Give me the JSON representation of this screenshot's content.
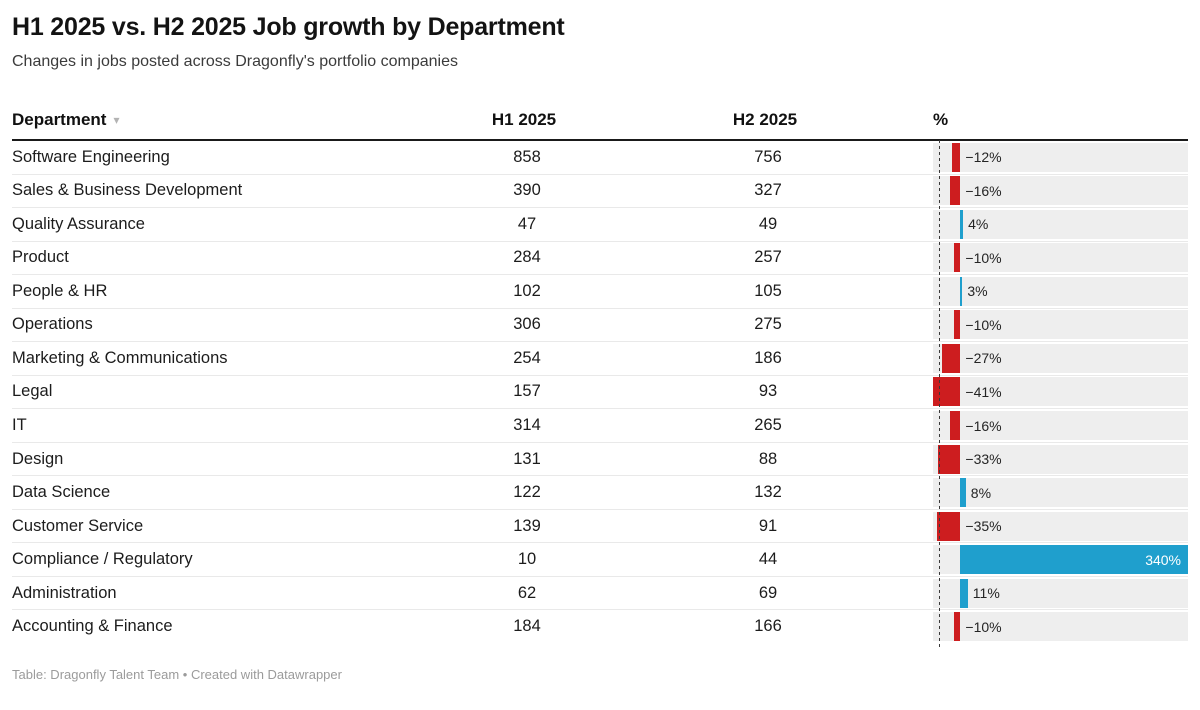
{
  "header": {
    "title": "H1 2025 vs. H2 2025 Job growth by Department",
    "subtitle": "Changes in jobs posted across Dragonfly's portfolio companies"
  },
  "table": {
    "columns": [
      {
        "key": "department",
        "label": "Department",
        "sort_icon": "▾"
      },
      {
        "key": "h1",
        "label": "H1 2025"
      },
      {
        "key": "h2",
        "label": "H2 2025"
      },
      {
        "key": "pct",
        "label": "%"
      }
    ]
  },
  "chart_data": {
    "type": "table",
    "title": "H1 2025 vs. H2 2025 Job growth by Department",
    "columns": [
      "Department",
      "H1 2025",
      "H2 2025",
      "%"
    ],
    "bar_axis": {
      "min": -41,
      "max": 340
    },
    "rows": [
      {
        "department": "Software Engineering",
        "h1": 858,
        "h2": 756,
        "pct": -12,
        "pct_label": "−12%"
      },
      {
        "department": "Sales & Business Development",
        "h1": 390,
        "h2": 327,
        "pct": -16,
        "pct_label": "−16%"
      },
      {
        "department": "Quality Assurance",
        "h1": 47,
        "h2": 49,
        "pct": 4,
        "pct_label": "4%"
      },
      {
        "department": "Product",
        "h1": 284,
        "h2": 257,
        "pct": -10,
        "pct_label": "−10%"
      },
      {
        "department": "People & HR",
        "h1": 102,
        "h2": 105,
        "pct": 3,
        "pct_label": "3%"
      },
      {
        "department": "Operations",
        "h1": 306,
        "h2": 275,
        "pct": -10,
        "pct_label": "−10%"
      },
      {
        "department": "Marketing & Communications",
        "h1": 254,
        "h2": 186,
        "pct": -27,
        "pct_label": "−27%"
      },
      {
        "department": "Legal",
        "h1": 157,
        "h2": 93,
        "pct": -41,
        "pct_label": "−41%"
      },
      {
        "department": "IT",
        "h1": 314,
        "h2": 265,
        "pct": -16,
        "pct_label": "−16%"
      },
      {
        "department": "Design",
        "h1": 131,
        "h2": 88,
        "pct": -33,
        "pct_label": "−33%"
      },
      {
        "department": "Data Science",
        "h1": 122,
        "h2": 132,
        "pct": 8,
        "pct_label": "8%"
      },
      {
        "department": "Customer Service",
        "h1": 139,
        "h2": 91,
        "pct": -35,
        "pct_label": "−35%"
      },
      {
        "department": "Compliance / Regulatory",
        "h1": 10,
        "h2": 44,
        "pct": 340,
        "pct_label": "340%"
      },
      {
        "department": "Administration",
        "h1": 62,
        "h2": 69,
        "pct": 11,
        "pct_label": "11%"
      },
      {
        "department": "Accounting & Finance",
        "h1": 184,
        "h2": 166,
        "pct": -10,
        "pct_label": "−10%"
      }
    ]
  },
  "colors": {
    "negative_bar": "#cd1d1f",
    "positive_bar": "#1f9fcd",
    "bar_track": "#eeeeee",
    "inside_label": "#ffffff"
  },
  "footer": {
    "text": "Table: Dragonfly Talent Team • Created with Datawrapper"
  }
}
